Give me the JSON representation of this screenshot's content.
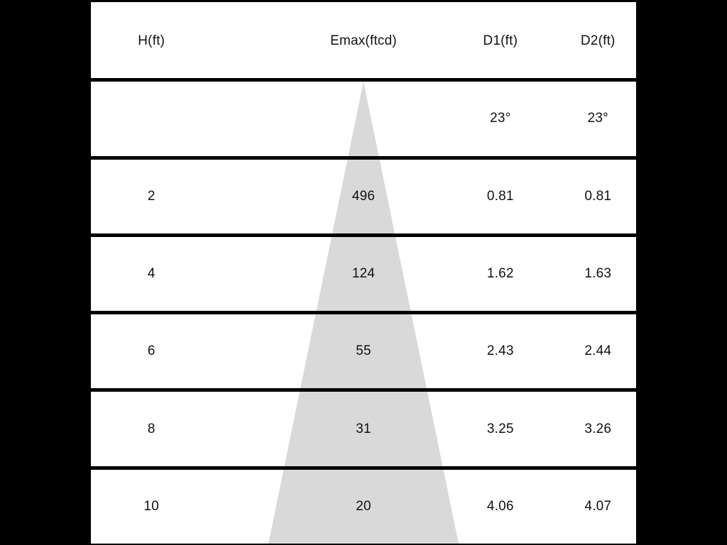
{
  "page": {
    "background_color": "#000000"
  },
  "table": {
    "background_color": "#ffffff",
    "separator_color": "#000000",
    "columns": [
      "H(ft)",
      "Emax(ftcd)",
      "D1(ft)",
      "D2(ft)"
    ],
    "rows": [
      [
        "",
        "",
        "23°",
        "23°"
      ],
      [
        "2",
        "496",
        "0.81",
        "0.81"
      ],
      [
        "4",
        "124",
        "1.62",
        "1.63"
      ],
      [
        "6",
        "55",
        "2.43",
        "2.44"
      ],
      [
        "8",
        "31",
        "3.25",
        "3.26"
      ],
      [
        "10",
        "20",
        "4.06",
        "4.07"
      ]
    ]
  },
  "beam_cone": {
    "color": "#d9d9d9",
    "beam_angle_d1": "23°",
    "beam_angle_d2": "23°"
  },
  "chart_data": {
    "type": "table",
    "title": "Photometric beam spread table with light cone diagram",
    "columns": [
      "H(ft)",
      "Emax(ftcd)",
      "D1(ft)",
      "D2(ft)"
    ],
    "beam_angles": {
      "D1": "23°",
      "D2": "23°"
    },
    "series": [
      {
        "name": "H(ft)",
        "values": [
          2,
          4,
          6,
          8,
          10
        ]
      },
      {
        "name": "Emax(ftcd)",
        "values": [
          496,
          124,
          55,
          31,
          20
        ]
      },
      {
        "name": "D1(ft)",
        "values": [
          0.81,
          1.62,
          2.43,
          3.25,
          4.06
        ]
      },
      {
        "name": "D2(ft)",
        "values": [
          0.81,
          1.63,
          2.44,
          3.26,
          4.07
        ]
      }
    ],
    "layout_hints": {
      "cone_apex_column": "Emax(ftcd)",
      "cone_direction": "widening-downward",
      "grid": "horizontal-separators-only"
    }
  }
}
